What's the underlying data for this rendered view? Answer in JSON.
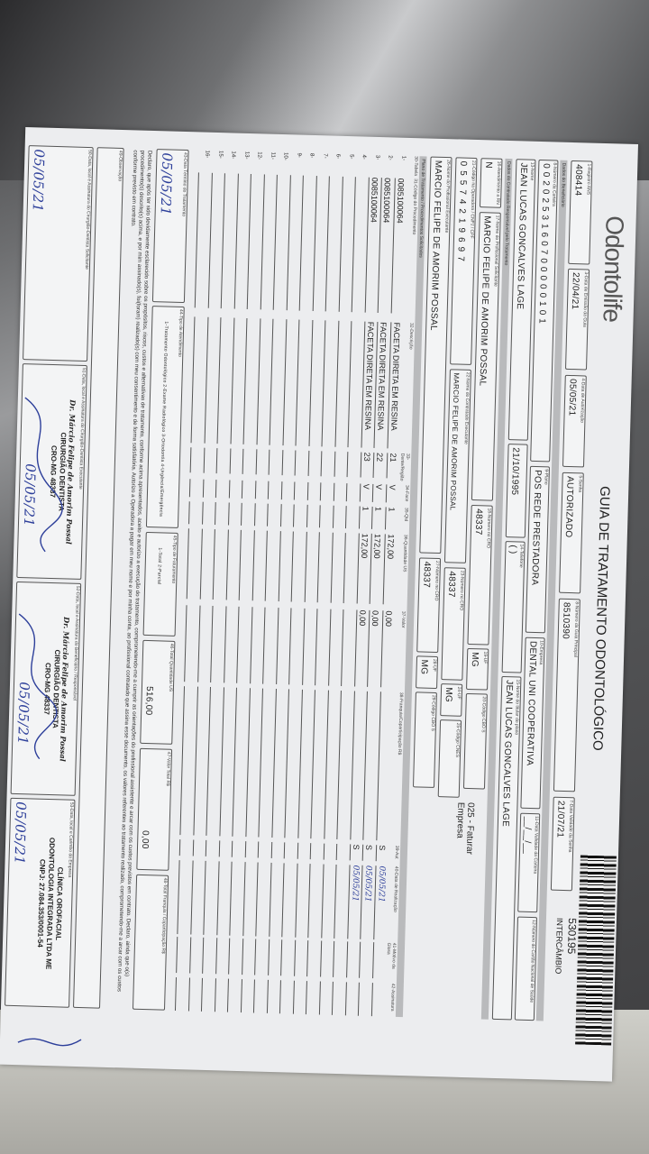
{
  "header": {
    "logo": "Odontolife",
    "title": "GUIA DE TRATAMENTO ODONTOLÓGICO",
    "guide_number": "530195",
    "guide_type": "INTERCÂMBIO"
  },
  "row1": {
    "ans_label": "1-Registro ANS",
    "ans": "408414",
    "emissao_label": "3-Data de Emissão da Guia",
    "emissao": "22/04/21",
    "autorizacao_label": "4-Data de Autorização",
    "autorizacao": "05/05/21",
    "senha_label": "5-Senha",
    "senha": "AUTORIZADO",
    "guia_principal_label": "8-Número da Guia Principal",
    "guia_principal": "8510390",
    "validade_senha_label": "7-Data Validade da Senha",
    "validade_senha": "21/07/21"
  },
  "beneficiario": {
    "section": "Dados do Beneficiário",
    "carteira_label": "8-Número da Carteira",
    "carteira": "0020253160700000101",
    "plano_label": "9-Plano",
    "plano": "POS REDE PRESTADORA",
    "empresa_label": "10-Empresa",
    "empresa": "DENTAL UNI COOPERATIVA",
    "validade_carteira_label": "11-Data Validade da Carteira",
    "validade_carteira": "__/__/__",
    "cns_label": "12-Número do Cartão Nacional de Saúde",
    "cns": "",
    "nome_label": "13-Nome",
    "nome": "JEAN LUCAS GONCALVES LAGE",
    "nascimento": "21/10/1995",
    "telefone_label": "14-Telefone",
    "telefone": "(   )",
    "titular_label": "15-Nome do titular do plano",
    "titular": "JEAN LUCAS GONCALVES LAGE"
  },
  "contratado": {
    "section": "Dados do Contratado Responsável pelo Tratamento",
    "rn_label": "16-Atendimento a RN",
    "rn": "N",
    "solicitante_label": "17-Nome do Profissional Solicitante",
    "solicitante": "MARCIO FELIPE DE AMORIM POSSAL",
    "cro1_label": "18-Número no CRO",
    "cro1": "48337",
    "uf1_label": "19-UF",
    "uf1": "MG",
    "cbo1_label": "20-Código CBO S",
    "faturamento_note": "025 - Faturar Empresa",
    "cnpj_label": "21-Código na Operadora / CNPJ / CPF",
    "cnpj": "05574219697",
    "executante_label": "22-Nome do Contratado Executante",
    "executante": "MARCIO FELIPE DE AMORIM POSSAL",
    "cro2_label": "23-Número no CRO",
    "cro2": "48337",
    "uf2_label": "24-UF",
    "uf2": "MG",
    "cnes_label": "25-Código CNES",
    "prof_exec_label": "26-Nome do Profissional Executante",
    "prof_exec": "MARCIO FELIPE DE AMORIM POSSAL",
    "cro3_label": "27-Número no CRO",
    "cro3": "48337",
    "uf3_label": "28-UF",
    "uf3": "MG",
    "cbo3_label": "29-Código CBO S"
  },
  "procedimentos": {
    "section": "Plano de Tratamento / Procedimentos Solicitados",
    "columns": [
      "30-Tabela",
      "31-Código do Procedimento",
      "32-Descrição",
      "33-Dente/Região",
      "34-Face",
      "35-Qtd",
      "36-Quantidade US",
      "37-Valor",
      "38-Franquia/Coparticipação R$",
      "39-Aut",
      "40-Data de Realização",
      "41-Motivo da Glosa",
      "42-Assinatura"
    ],
    "rows": [
      {
        "n": "1-",
        "codigo": "0085100064",
        "descricao": "FACETA DIRETA EM RESINA",
        "dente": "21",
        "face": "V",
        "qtd": "1",
        "us": "172,00",
        "valor": "0,00",
        "aut": "S",
        "data": "05/05/21"
      },
      {
        "n": "2-",
        "codigo": "0085100064",
        "descricao": "FACETA DIRETA EM RESINA",
        "dente": "22",
        "face": "V",
        "qtd": "1",
        "us": "172,00",
        "valor": "0,00",
        "aut": "S",
        "data": "05/05/21"
      },
      {
        "n": "3-",
        "codigo": "0085100064",
        "descricao": "FACETA DIRETA EM RESINA",
        "dente": "23",
        "face": "V",
        "qtd": "1",
        "us": "172,00",
        "valor": "0,00",
        "aut": "S",
        "data": "05/05/21"
      },
      {
        "n": "4-"
      },
      {
        "n": "5-"
      },
      {
        "n": "6-"
      },
      {
        "n": "7-"
      },
      {
        "n": "8-"
      },
      {
        "n": "9-"
      },
      {
        "n": "10-"
      },
      {
        "n": "11-"
      },
      {
        "n": "12-"
      },
      {
        "n": "13-"
      },
      {
        "n": "14-"
      },
      {
        "n": "15-"
      },
      {
        "n": "16-"
      }
    ]
  },
  "rodape": {
    "termino_label": "43-Data Término do Tratamento",
    "termino": "05/05/21",
    "tipo_atend_label": "44-Tipo de Atendimento",
    "tipo_atend_options": "1-Tratamento Odontológico 2-Exame Radiológico 3-Ortodontia 4-Urgência/Emergência",
    "tipo_fat_label": "45-Tipo de Faturamento",
    "tipo_fat_options": "1-Total 2-Parcial",
    "total_us_label": "46-Total Quantidade US",
    "total_us": "516,00",
    "valor_total_label": "47-Valor Total R$",
    "valor_total": "0,00",
    "franquia_total_label": "48-Total Franquia / Coparticipação R$",
    "declaracao": "Declaro, que após ter sido devidamente esclarecido sobre os propósitos, riscos, custos e alternativas de tratamento, conforme acima apresentados, aceito e autorizo a execução do tratamento, comprometendo-me a cumprir as orientações do profissional assistente e arcar com os custos previstos em contrato. Declaro, ainda que o(s) procedimento(s) descrito(s) acima, e por mim assinado(s), foi(foram) realizado(s) com meu consentimento e de forma satisfatória. Autorizo a Operadora a pagar em meu nome e por minha conta, ao profissional contratado que assina esse documento, os valores referentes ao tratamento realizado, comprometendo-me a arcar com os custos conforme previsto em contrato.",
    "observacao_label": "49-Observação",
    "sig50_label": "50-Data, local e Assinatura do Cirurgião-Dentista Solicitante",
    "sig50_date": "05/05/21",
    "sig51_label": "51-Data, local e Assinatura do Cirurgião-Dentista Executante",
    "sig51_date": "05/05/21",
    "sig52_label": "52-Data, local e Assinatura do Beneficiário / Responsável",
    "sig52_date": "05/05/21",
    "sig53_label": "53-Data, local e Carimbo da Empresa",
    "sig53_date": "05/05/21",
    "dentist_stamp": [
      "Dr. Márcio Felipe de Amorim Possal",
      "CIRURGIÃO DENTISTA",
      "CRO-MG 48337"
    ],
    "clinic_stamp": [
      "CLÍNICA OROFACIAL",
      "ODONTOLOGIA INTEGRADA LTDA ME",
      "CNPJ: 27.084.353/0001-54"
    ]
  }
}
